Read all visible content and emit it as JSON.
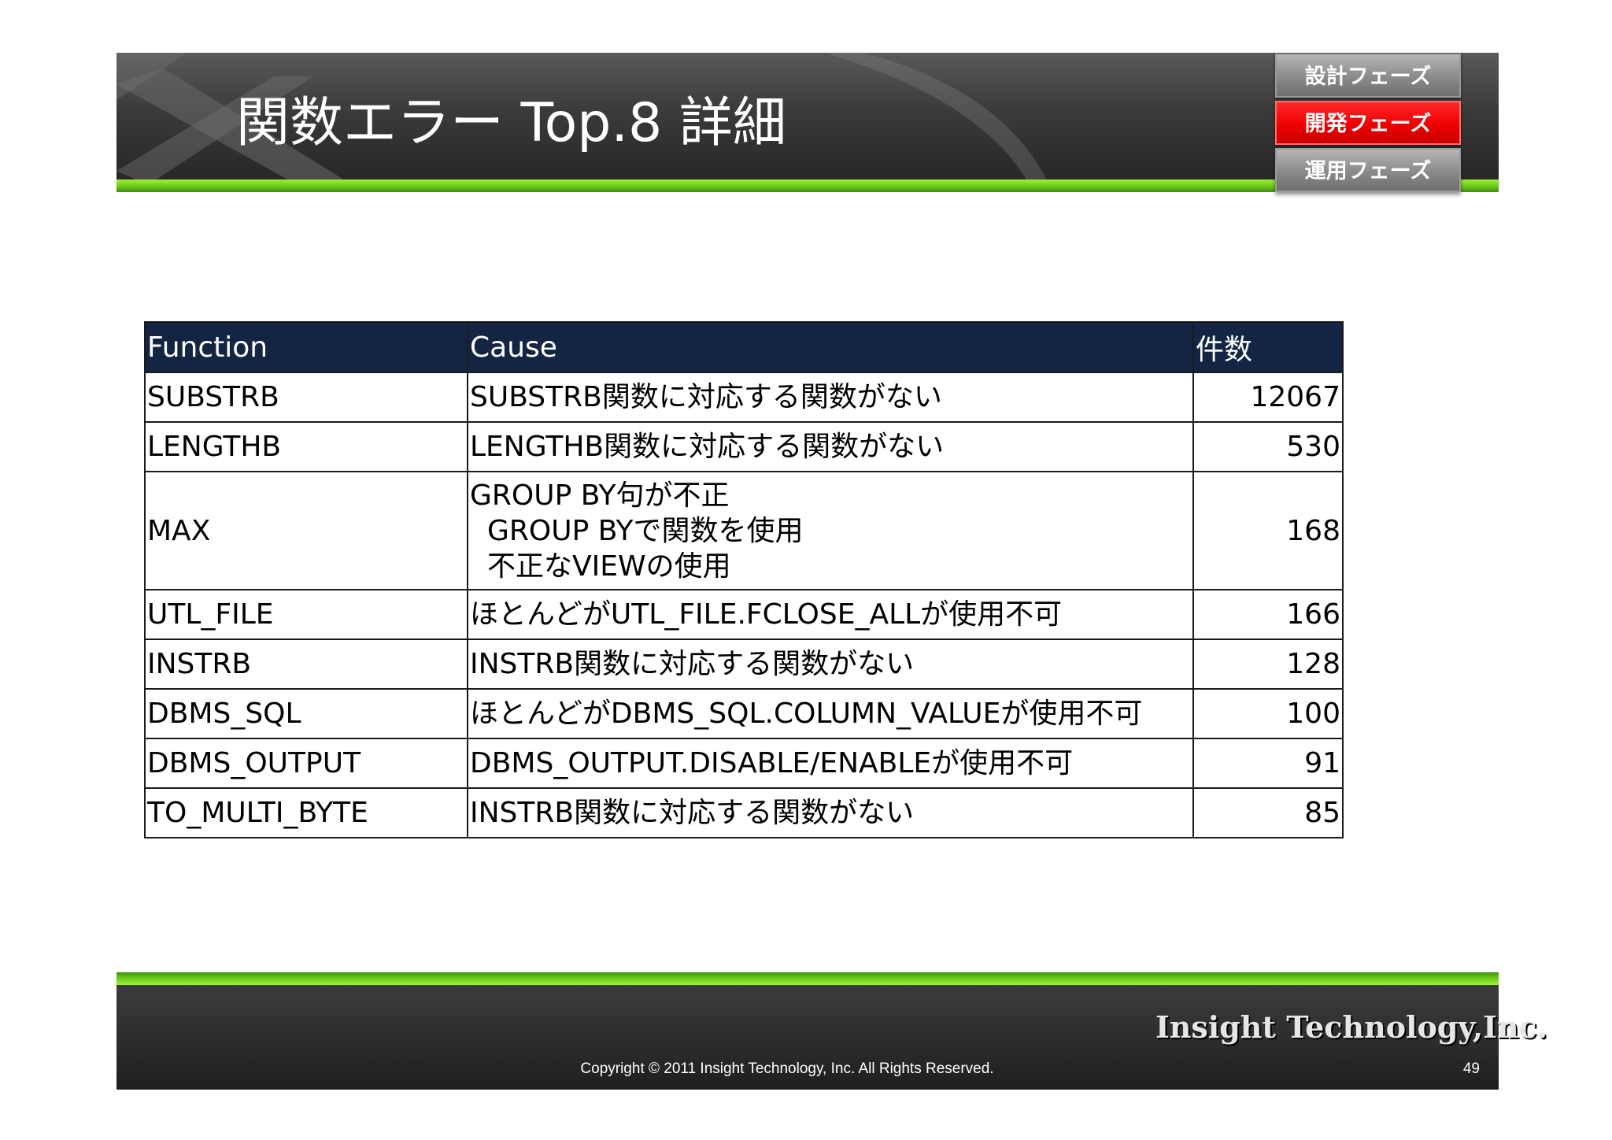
{
  "header": {
    "title": "関数エラー Top.8 詳細"
  },
  "phase_nav": {
    "items": [
      {
        "label": "設計フェーズ",
        "active": false
      },
      {
        "label": "開発フェーズ",
        "active": true
      },
      {
        "label": "運用フェーズ",
        "active": false
      }
    ]
  },
  "colors": {
    "accent_green": "#66c417",
    "active_red": "#ee0000",
    "table_header_bg": "#142544"
  },
  "table": {
    "headers": [
      "Function",
      "Cause",
      "件数"
    ],
    "rows": [
      {
        "function": "SUBSTRB",
        "cause": [
          "SUBSTRB関数に対応する関数がない"
        ],
        "count": "12067"
      },
      {
        "function": "LENGTHB",
        "cause": [
          "LENGTHB関数に対応する関数がない"
        ],
        "count": "530"
      },
      {
        "function": "MAX",
        "cause": [
          "GROUP BY句が不正",
          "GROUP BYで関数を使用",
          "不正なVIEWの使用"
        ],
        "count": "168"
      },
      {
        "function": "UTL_FILE",
        "cause": [
          "ほとんどがUTL_FILE.FCLOSE_ALLが使用不可"
        ],
        "count": "166"
      },
      {
        "function": "INSTRB",
        "cause": [
          "INSTRB関数に対応する関数がない"
        ],
        "count": "128"
      },
      {
        "function": "DBMS_SQL",
        "cause": [
          "ほとんどがDBMS_SQL.COLUMN_VALUEが使用不可"
        ],
        "count": "100"
      },
      {
        "function": "DBMS_OUTPUT",
        "cause": [
          "DBMS_OUTPUT.DISABLE/ENABLEが使用不可"
        ],
        "count": "91"
      },
      {
        "function": "TO_MULTI_BYTE",
        "cause": [
          "INSTRB関数に対応する関数がない"
        ],
        "count": "85"
      }
    ]
  },
  "footer": {
    "logo": "Insight Technology,Inc.",
    "copyright": "Copyright © 2011 Insight Technology, Inc. All Rights Reserved.",
    "page_number": "49"
  }
}
